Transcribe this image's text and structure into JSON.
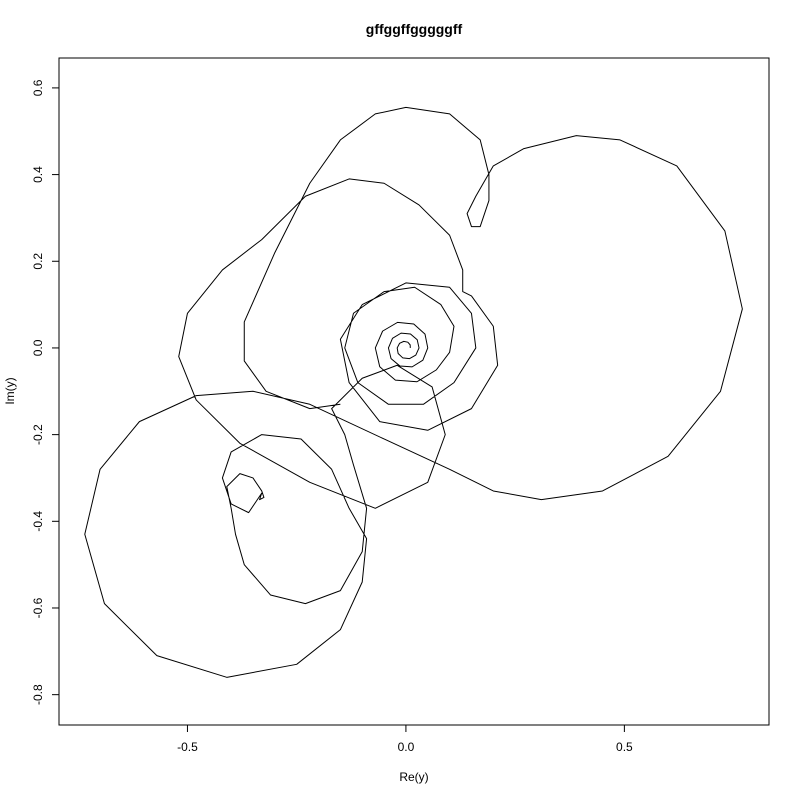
{
  "chart_data": {
    "type": "line",
    "title": "gffggffgggggff",
    "x_label": "Re(y)",
    "y_label": "Im(y)",
    "xlim": [
      -0.794,
      0.831
    ],
    "ylim": [
      -0.87,
      0.669
    ],
    "xticks": [
      -0.5,
      {
        "value": 0,
        "label": "0.0"
      },
      0.5
    ],
    "yticks": [
      -0.8,
      -0.6,
      -0.4,
      -0.2,
      {
        "value": 0,
        "label": "0.0"
      },
      0.2,
      0.4,
      0.6
    ],
    "color": "#000000",
    "x": [
      0.01,
      0.0097,
      0.0043,
      -0.0049,
      -0.0146,
      -0.02,
      -0.0178,
      -0.0074,
      0.008,
      0.0227,
      0.03,
      0.0259,
      0.0105,
      -0.0111,
      -0.0307,
      -0.04,
      -0.034,
      -0.0136,
      0.0142,
      0.0388,
      0.05,
      0.0437,
      0.0179,
      -0.0192,
      -0.0534,
      -0.07,
      -0.0599,
      -0.0241,
      0.0253,
      0.0696,
      0.1,
      0.11,
      0.08,
      0.02,
      -0.05,
      -0.12,
      -0.14,
      -0.11,
      -0.04,
      0.04,
      0.11,
      0.16,
      0.15,
      0.1,
      0.0,
      -0.1,
      -0.15,
      -0.13,
      -0.06,
      0.05,
      0.15,
      0.21,
      0.2,
      0.15,
      0.13,
      0.13,
      0.1,
      0.03,
      -0.05,
      -0.13,
      -0.23,
      -0.33,
      -0.42,
      -0.5,
      -0.52,
      -0.48,
      -0.38,
      -0.22,
      -0.07,
      0.05,
      0.09,
      0.06,
      -0.02,
      -0.1,
      -0.17,
      -0.14,
      -0.12,
      -0.09,
      -0.1,
      -0.15,
      -0.23,
      -0.31,
      -0.37,
      -0.39,
      -0.4,
      -0.41,
      -0.38,
      -0.35,
      -0.33,
      -0.325,
      -0.335,
      -0.33,
      -0.36,
      -0.4,
      -0.42,
      -0.4,
      -0.33,
      -0.24,
      -0.17,
      -0.13,
      -0.09,
      -0.1,
      -0.15,
      -0.25,
      -0.41,
      -0.57,
      -0.69,
      -0.735,
      -0.7,
      -0.61,
      -0.48,
      -0.35,
      -0.22,
      -0.05,
      0.1,
      0.2,
      0.31,
      0.45,
      0.6,
      0.72,
      0.77,
      0.73,
      0.62,
      0.49,
      0.39,
      0.27,
      0.2,
      0.16,
      0.14,
      0.15,
      0.17,
      0.19,
      0.19,
      0.17,
      0.1,
      0.0,
      -0.07,
      -0.15,
      -0.22,
      -0.3,
      -0.37,
      -0.37,
      -0.32,
      -0.22,
      -0.15
    ],
    "values": [
      0,
      0.0071,
      0.0133,
      0.0152,
      0.0106,
      0,
      -0.0129,
      -0.0228,
      -0.0247,
      -0.0165,
      0,
      0.0188,
      0.0323,
      0.0342,
      0.0223,
      0,
      -0.0247,
      -0.0418,
      -0.0437,
      -0.0282,
      0,
      0.0318,
      0.0552,
      0.059,
      0.0388,
      0,
      -0.0435,
      -0.0742,
      -0.078,
      -0.0506,
      -0.01,
      0.05,
      0.1,
      0.14,
      0.13,
      0.08,
      0.0,
      -0.08,
      -0.13,
      -0.13,
      -0.08,
      0.0,
      0.08,
      0.14,
      0.15,
      0.1,
      0.02,
      -0.08,
      -0.17,
      -0.19,
      -0.14,
      -0.04,
      0.05,
      0.12,
      0.13,
      0.18,
      0.26,
      0.33,
      0.38,
      0.39,
      0.35,
      0.25,
      0.18,
      0.08,
      -0.02,
      -0.12,
      -0.22,
      -0.31,
      -0.37,
      -0.31,
      -0.2,
      -0.09,
      -0.04,
      -0.07,
      -0.14,
      -0.2,
      -0.27,
      -0.37,
      -0.47,
      -0.56,
      -0.59,
      -0.57,
      -0.5,
      -0.43,
      -0.37,
      -0.32,
      -0.29,
      -0.3,
      -0.33,
      -0.345,
      -0.35,
      -0.335,
      -0.38,
      -0.36,
      -0.3,
      -0.24,
      -0.2,
      -0.21,
      -0.28,
      -0.37,
      -0.44,
      -0.54,
      -0.65,
      -0.73,
      -0.76,
      -0.71,
      -0.59,
      -0.43,
      -0.28,
      -0.17,
      -0.11,
      -0.1,
      -0.13,
      -0.21,
      -0.28,
      -0.33,
      -0.35,
      -0.33,
      -0.25,
      -0.1,
      0.09,
      0.27,
      0.42,
      0.48,
      0.49,
      0.46,
      0.42,
      0.35,
      0.31,
      0.28,
      0.28,
      0.34,
      0.4,
      0.48,
      0.54,
      0.555,
      0.54,
      0.48,
      0.38,
      0.22,
      0.06,
      -0.03,
      -0.1,
      -0.14,
      -0.13
    ]
  }
}
